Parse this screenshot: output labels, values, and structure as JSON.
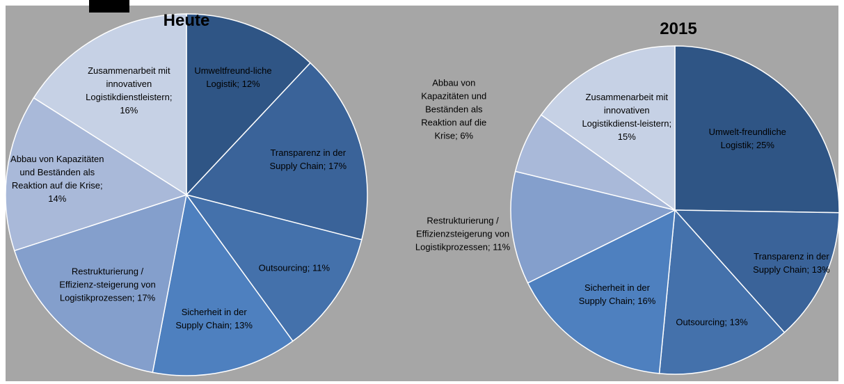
{
  "chart_data": [
    {
      "type": "pie",
      "title": "Heute",
      "categories": [
        "Umweltfreund-liche Logistik",
        "Transparenz in der Supply Chain",
        "Outsourcing",
        "Sicherheit in der Supply Chain",
        "Restrukturierung / Effizienz-steigerung von Logistikprozessen",
        "Abbau von Kapazitäten und Beständen als Reaktion auf die Krise",
        "Zusammenarbeit mit innovativen Logistikdienstleistern"
      ],
      "values": [
        12,
        17,
        11,
        13,
        17,
        14,
        16
      ],
      "value_labels": [
        "12%",
        "17%",
        "11%",
        "13%",
        "17%",
        "14%",
        "16%"
      ],
      "colors": [
        "#2f5585",
        "#3a6399",
        "#4471ab",
        "#4e80bf",
        "#849fcc",
        "#a9b9d9",
        "#c6d1e5"
      ]
    },
    {
      "type": "pie",
      "title": "2015",
      "categories": [
        "Umwelt-freundliche Logistik",
        "Transparenz in der Supply Chain",
        "Outsourcing",
        "Sicherheit in der Supply Chain",
        "Restrukturierung / Effizienzsteigerung von Logistikprozessen",
        "Abbau von Kapazitäten und Beständen als Reaktion auf die Krise",
        "Zusammenarbeit mit innovativen Logistikdienst-leistern"
      ],
      "values": [
        25,
        13,
        13,
        16,
        11,
        6,
        15
      ],
      "value_labels": [
        "25%",
        "13%",
        "13%",
        "16%",
        "11%",
        "6%",
        "15%"
      ],
      "colors": [
        "#2f5585",
        "#3a6399",
        "#4471ab",
        "#4e80bf",
        "#849fcc",
        "#a9b9d9",
        "#c6d1e5"
      ]
    }
  ]
}
